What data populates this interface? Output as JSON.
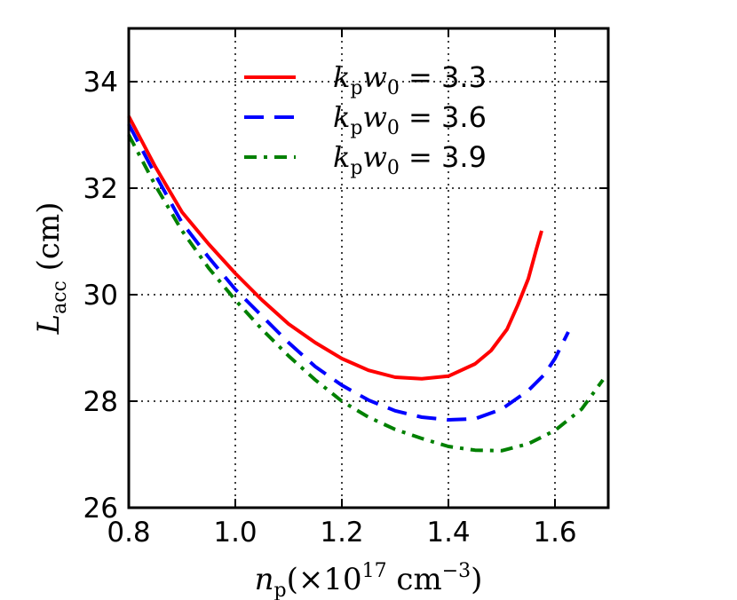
{
  "chart_data": {
    "type": "line",
    "title": "",
    "xlabel": "n_p(×10^17 cm^-3)",
    "ylabel": "L_acc (cm)",
    "xlim": [
      0.8,
      1.7
    ],
    "ylim": [
      26,
      35
    ],
    "grid": true,
    "legend_position": "top-center",
    "x_ticks": [
      "0.8",
      "1.0",
      "1.2",
      "1.4",
      "1.6"
    ],
    "y_ticks": [
      "26",
      "28",
      "30",
      "32",
      "34"
    ],
    "series": [
      {
        "name": "k_p w_0 = 3.3",
        "legend_value": "3.3",
        "color": "#ff0000",
        "style": "solid",
        "x": [
          0.8,
          0.85,
          0.9,
          0.95,
          1.0,
          1.05,
          1.1,
          1.15,
          1.2,
          1.25,
          1.3,
          1.35,
          1.4,
          1.45,
          1.48,
          1.51,
          1.53,
          1.55,
          1.565,
          1.575
        ],
        "y": [
          33.35,
          32.4,
          31.55,
          30.95,
          30.4,
          29.9,
          29.45,
          29.1,
          28.8,
          28.58,
          28.45,
          28.42,
          28.47,
          28.7,
          28.95,
          29.35,
          29.8,
          30.3,
          30.85,
          31.2
        ]
      },
      {
        "name": "k_p w_0 = 3.6",
        "legend_value": "3.6",
        "color": "#0000ff",
        "style": "dashed",
        "x": [
          0.8,
          0.85,
          0.9,
          0.95,
          1.0,
          1.05,
          1.1,
          1.15,
          1.2,
          1.25,
          1.3,
          1.35,
          1.4,
          1.45,
          1.5,
          1.55,
          1.58,
          1.6,
          1.625
        ],
        "y": [
          33.2,
          32.25,
          31.35,
          30.7,
          30.1,
          29.6,
          29.1,
          28.65,
          28.3,
          28.02,
          27.82,
          27.7,
          27.65,
          27.67,
          27.85,
          28.2,
          28.5,
          28.8,
          29.3
        ]
      },
      {
        "name": "k_p w_0 = 3.9",
        "legend_value": "3.9",
        "color": "#008000",
        "style": "dashdot",
        "x": [
          0.8,
          0.85,
          0.9,
          0.95,
          1.0,
          1.05,
          1.1,
          1.15,
          1.2,
          1.25,
          1.3,
          1.35,
          1.4,
          1.45,
          1.5,
          1.55,
          1.6,
          1.65,
          1.69
        ],
        "y": [
          33.0,
          32.05,
          31.2,
          30.5,
          29.9,
          29.35,
          28.85,
          28.4,
          28.0,
          27.7,
          27.47,
          27.3,
          27.15,
          27.08,
          27.07,
          27.2,
          27.45,
          27.85,
          28.4
        ]
      }
    ]
  }
}
